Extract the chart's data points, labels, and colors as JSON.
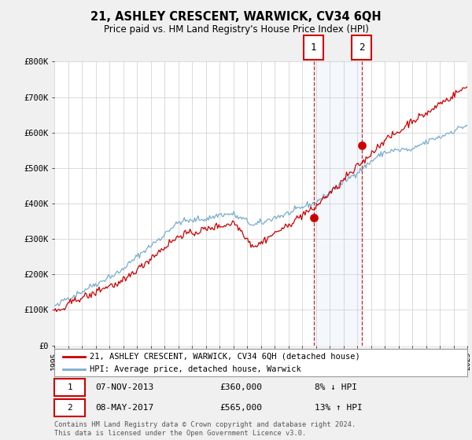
{
  "title": "21, ASHLEY CRESCENT, WARWICK, CV34 6QH",
  "subtitle": "Price paid vs. HM Land Registry's House Price Index (HPI)",
  "ylim": [
    0,
    800000
  ],
  "yticks": [
    0,
    100000,
    200000,
    300000,
    400000,
    500000,
    600000,
    700000,
    800000
  ],
  "ytick_labels": [
    "£0",
    "£100K",
    "£200K",
    "£300K",
    "£400K",
    "£500K",
    "£600K",
    "£700K",
    "£800K"
  ],
  "bg_color": "#f0f0f0",
  "plot_bg_color": "#ffffff",
  "grid_color": "#cccccc",
  "line1_color": "#cc0000",
  "line2_color": "#7aadcc",
  "t1_year": 2013.83,
  "t2_year": 2017.33,
  "t1_price": 360000,
  "t2_price": 565000,
  "legend1": "21, ASHLEY CRESCENT, WARWICK, CV34 6QH (detached house)",
  "legend2": "HPI: Average price, detached house, Warwick",
  "footnote": "Contains HM Land Registry data © Crown copyright and database right 2024.\nThis data is licensed under the Open Government Licence v3.0.",
  "table_row1": [
    "1",
    "07-NOV-2013",
    "£360,000",
    "8% ↓ HPI"
  ],
  "table_row2": [
    "2",
    "08-MAY-2017",
    "£565,000",
    "13% ↑ HPI"
  ]
}
